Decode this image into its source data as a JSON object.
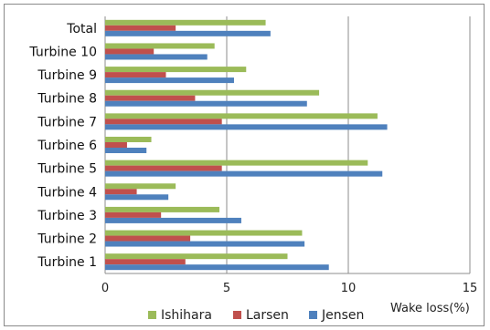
{
  "chart_data": {
    "type": "bar",
    "orientation": "horizontal",
    "categories": [
      "Turbine 1",
      "Turbine 2",
      "Turbine 3",
      "Turbine 4",
      "Turbine 5",
      "Turbine 6",
      "Turbine 7",
      "Turbine 8",
      "Turbine 9",
      "Turbine 10",
      "Total"
    ],
    "series": [
      {
        "name": "Jensen",
        "color": "#4F81BD",
        "values": [
          9.2,
          8.2,
          5.6,
          2.6,
          11.4,
          1.7,
          11.6,
          8.3,
          5.3,
          4.2,
          6.8
        ]
      },
      {
        "name": "Larsen",
        "color": "#C0504D",
        "values": [
          3.3,
          3.5,
          2.3,
          1.3,
          4.8,
          0.9,
          4.8,
          3.7,
          2.5,
          2.0,
          2.9
        ]
      },
      {
        "name": "Ishihara",
        "color": "#9BBB59",
        "values": [
          7.5,
          8.1,
          4.7,
          2.9,
          10.8,
          1.9,
          11.2,
          8.8,
          5.8,
          4.5,
          6.6
        ]
      }
    ],
    "xlabel": "Wake loss(%)",
    "ylabel": "",
    "title": "",
    "xlim": [
      0,
      15
    ],
    "xticks": [
      0,
      5,
      10,
      15
    ],
    "grid": "vertical major gridlines",
    "legend": {
      "position": "bottom",
      "order": [
        "Ishihara",
        "Larsen",
        "Jensen"
      ]
    }
  }
}
